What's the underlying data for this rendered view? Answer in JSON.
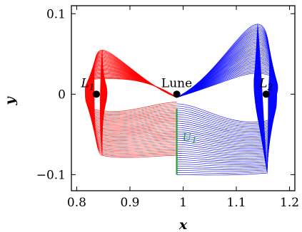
{
  "chart_data": {
    "type": "line",
    "title": "",
    "xlabel": "x",
    "ylabel": "y",
    "xlim": [
      0.79,
      1.21
    ],
    "ylim": [
      -0.12,
      0.11
    ],
    "x_ticks": [
      0.8,
      0.9,
      1,
      1.1,
      1.2
    ],
    "x_tick_labels": [
      "0.8",
      "0.9",
      "1",
      "1.1",
      "1.2"
    ],
    "y_ticks": [
      -0.1,
      0,
      0.1
    ],
    "y_tick_labels": [
      "−0.1",
      "0",
      "0.1"
    ],
    "grid": false,
    "legend": "none",
    "points": [
      {
        "label": "L",
        "sub": "1",
        "x": 0.837,
        "y": 0.0
      },
      {
        "label": "Lune",
        "sub": "",
        "x": 0.988,
        "y": 0.0
      },
      {
        "label": "L",
        "sub": "2",
        "x": 1.156,
        "y": 0.0
      }
    ],
    "section": {
      "label": "U",
      "sub": "1",
      "x": 0.988,
      "y_range": [
        -0.1,
        -0.018
      ],
      "color": "#2ca02c"
    },
    "series": [
      {
        "color": "#ff0000",
        "description_points": {
          "lobe_x_range": [
            0.829,
            0.988
          ],
          "top_peak": [
            0.848,
            0.055
          ],
          "bottom_corner": [
            0.848,
            -0.058
          ],
          "right_bottom": [
            0.988,
            -0.076
          ]
        }
      },
      {
        "color": "#0000ff",
        "description_points": {
          "lobe_x_range": [
            0.988,
            1.16
          ],
          "top_peak": [
            1.14,
            0.087
          ],
          "bottom_corner": [
            1.155,
            -0.098
          ],
          "left_bottom": [
            0.988,
            -0.1
          ]
        }
      }
    ]
  }
}
